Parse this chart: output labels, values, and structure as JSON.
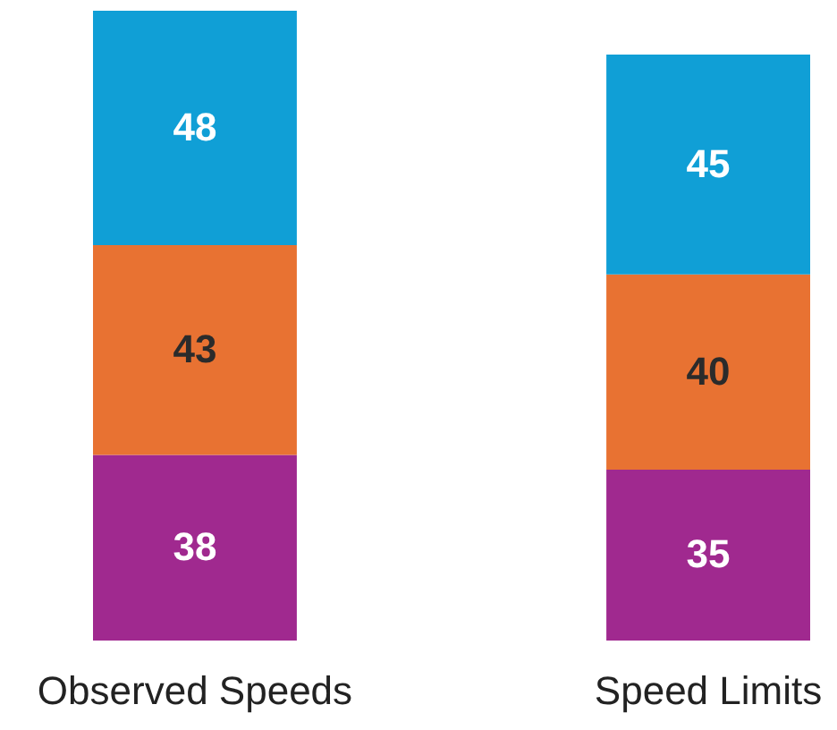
{
  "chart_data": {
    "type": "bar",
    "stacked": true,
    "data_labels": true,
    "categories": [
      "Observed Speeds",
      "Speed Limits"
    ],
    "series": [
      {
        "color": "#a0298f",
        "values": [
          38,
          35
        ]
      },
      {
        "color": "#e87232",
        "values": [
          43,
          40
        ]
      },
      {
        "color": "#109fd6",
        "values": [
          48,
          45
        ]
      }
    ]
  }
}
